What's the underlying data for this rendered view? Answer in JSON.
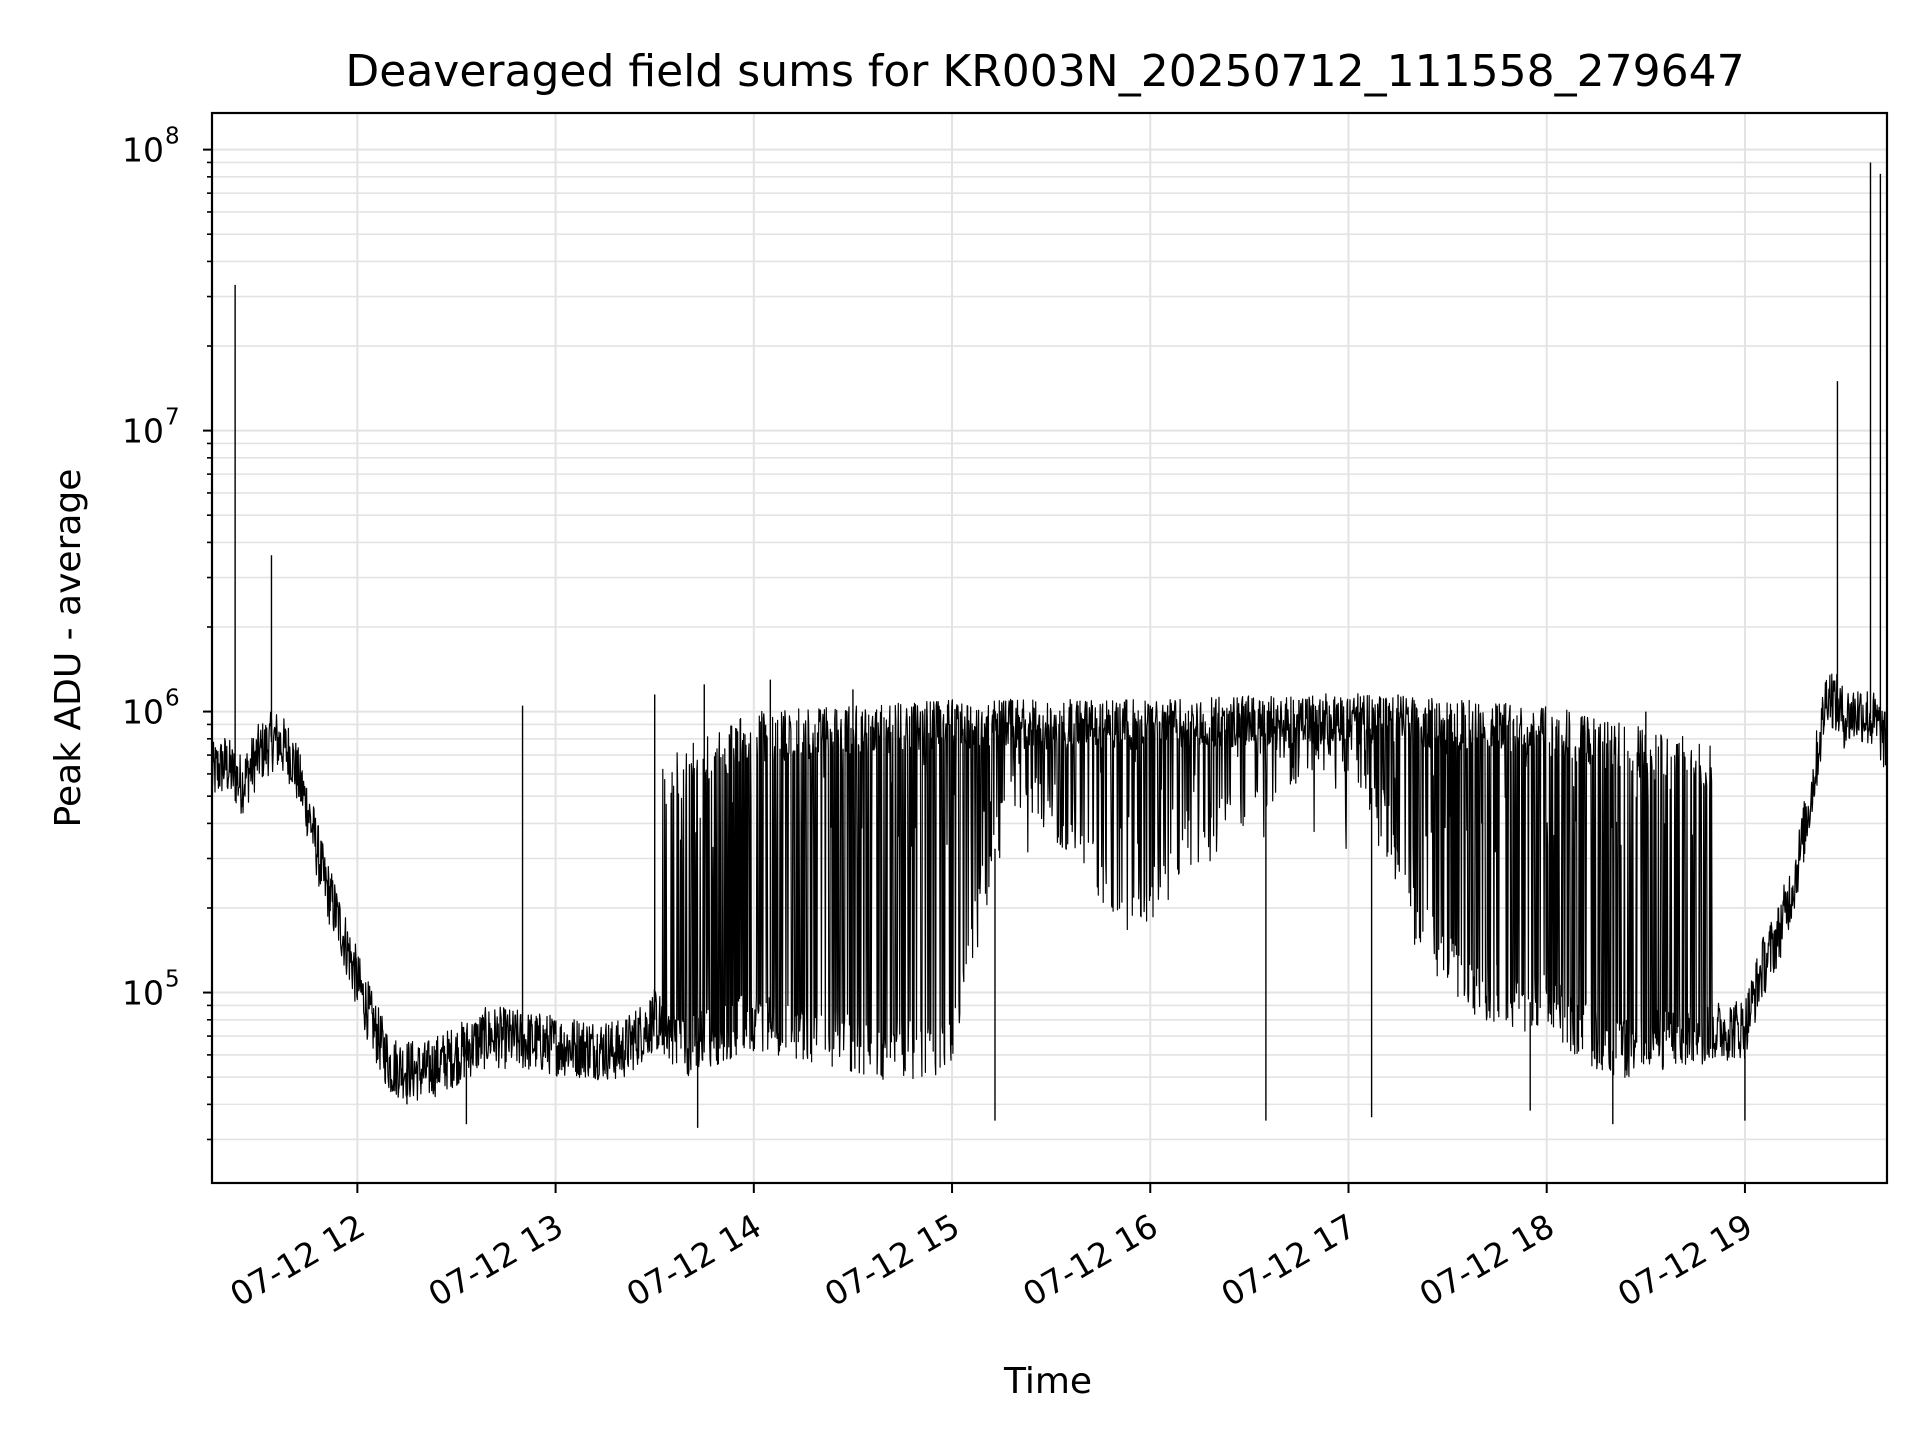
{
  "chart_data": {
    "type": "line",
    "title": "Deaveraged field sums for KR003N_20250712_111558_279647",
    "xlabel": "Time",
    "ylabel": "Peak ADU - average",
    "y_scale": "log",
    "grid": true,
    "xlim": [
      "2025-07-12T11:16",
      "2025-07-12T19:43"
    ],
    "ylim": [
      21000,
      135000000
    ],
    "x_ticks": [
      {
        "at": "2025-07-12T12:00",
        "label": "07-12 12"
      },
      {
        "at": "2025-07-12T13:00",
        "label": "07-12 13"
      },
      {
        "at": "2025-07-12T14:00",
        "label": "07-12 14"
      },
      {
        "at": "2025-07-12T15:00",
        "label": "07-12 15"
      },
      {
        "at": "2025-07-12T16:00",
        "label": "07-12 16"
      },
      {
        "at": "2025-07-12T17:00",
        "label": "07-12 17"
      },
      {
        "at": "2025-07-12T18:00",
        "label": "07-12 18"
      },
      {
        "at": "2025-07-12T19:00",
        "label": "07-12 19"
      }
    ],
    "y_ticks": [
      {
        "value": 100000,
        "base": "10",
        "exp": "5"
      },
      {
        "value": 1000000,
        "base": "10",
        "exp": "6"
      },
      {
        "value": 10000000,
        "base": "10",
        "exp": "7"
      },
      {
        "value": 100000000,
        "base": "10",
        "exp": "8"
      }
    ],
    "series": [
      {
        "color": "#000000",
        "baseline": [
          [
            "2025-07-12T11:16",
            600000
          ],
          [
            "2025-07-12T11:20",
            650000
          ],
          [
            "2025-07-12T11:25",
            550000
          ],
          [
            "2025-07-12T11:30",
            700000
          ],
          [
            "2025-07-12T11:35",
            800000
          ],
          [
            "2025-07-12T11:40",
            700000
          ],
          [
            "2025-07-12T11:45",
            450000
          ],
          [
            "2025-07-12T11:50",
            250000
          ],
          [
            "2025-07-12T11:55",
            170000
          ],
          [
            "2025-07-12T12:00",
            110000
          ],
          [
            "2025-07-12T12:05",
            75000
          ],
          [
            "2025-07-12T12:10",
            55000
          ],
          [
            "2025-07-12T12:20",
            52000
          ],
          [
            "2025-07-12T12:30",
            60000
          ],
          [
            "2025-07-12T12:40",
            70000
          ],
          [
            "2025-07-12T13:00",
            65000
          ],
          [
            "2025-07-12T13:20",
            62000
          ],
          [
            "2025-07-12T13:30",
            80000
          ],
          [
            "2025-07-12T13:40",
            65000
          ],
          [
            "2025-07-12T14:00",
            80000
          ],
          [
            "2025-07-12T14:20",
            72000
          ],
          [
            "2025-07-12T14:40",
            62000
          ],
          [
            "2025-07-12T15:00",
            65000
          ],
          [
            "2025-07-12T15:10",
            250000
          ],
          [
            "2025-07-12T15:20",
            600000
          ],
          [
            "2025-07-12T15:40",
            350000
          ],
          [
            "2025-07-12T15:50",
            200000
          ],
          [
            "2025-07-12T16:00",
            220000
          ],
          [
            "2025-07-12T16:20",
            400000
          ],
          [
            "2025-07-12T16:40",
            650000
          ],
          [
            "2025-07-12T17:00",
            800000
          ],
          [
            "2025-07-12T17:10",
            450000
          ],
          [
            "2025-07-12T17:20",
            180000
          ],
          [
            "2025-07-12T17:40",
            100000
          ],
          [
            "2025-07-12T18:00",
            90000
          ],
          [
            "2025-07-12T18:20",
            62000
          ],
          [
            "2025-07-12T18:40",
            70000
          ],
          [
            "2025-07-12T19:00",
            75000
          ],
          [
            "2025-07-12T19:05",
            120000
          ],
          [
            "2025-07-12T19:10",
            160000
          ],
          [
            "2025-07-12T19:15",
            250000
          ],
          [
            "2025-07-12T19:20",
            500000
          ],
          [
            "2025-07-12T19:25",
            1200000
          ],
          [
            "2025-07-12T19:30",
            950000
          ],
          [
            "2025-07-12T19:35",
            1000000
          ],
          [
            "2025-07-12T19:40",
            900000
          ],
          [
            "2025-07-12T19:43",
            750000
          ]
        ],
        "spikes": [
          [
            "2025-07-12T11:23",
            33000000
          ],
          [
            "2025-07-12T11:34",
            3600000
          ],
          [
            "2025-07-12T12:50",
            1050000
          ],
          [
            "2025-07-12T13:30",
            1150000
          ],
          [
            "2025-07-12T13:45",
            1250000
          ],
          [
            "2025-07-12T14:05",
            1300000
          ],
          [
            "2025-07-12T14:30",
            1200000
          ],
          [
            "2025-07-12T15:00",
            1050000
          ],
          [
            "2025-07-12T16:00",
            1050000
          ],
          [
            "2025-07-12T16:45",
            1100000
          ],
          [
            "2025-07-12T17:15",
            1150000
          ],
          [
            "2025-07-12T17:45",
            1050000
          ],
          [
            "2025-07-12T18:30",
            1000000
          ],
          [
            "2025-07-12T19:28",
            15000000
          ],
          [
            "2025-07-12T19:38",
            90000000
          ],
          [
            "2025-07-12T19:41",
            82000000
          ]
        ],
        "dips": [
          [
            "2025-07-12T12:15",
            40000
          ],
          [
            "2025-07-12T12:33",
            34000
          ],
          [
            "2025-07-12T13:43",
            33000
          ],
          [
            "2025-07-12T15:13",
            35000
          ],
          [
            "2025-07-12T16:35",
            35000
          ],
          [
            "2025-07-12T17:07",
            36000
          ],
          [
            "2025-07-12T17:55",
            38000
          ],
          [
            "2025-07-12T18:20",
            34000
          ],
          [
            "2025-07-12T19:00",
            35000
          ]
        ],
        "band": [
          [
            "2025-07-12T13:30",
            600000
          ],
          [
            "2025-07-12T14:00",
            900000
          ],
          [
            "2025-07-12T14:30",
            950000
          ],
          [
            "2025-07-12T15:00",
            1000000
          ],
          [
            "2025-07-12T16:00",
            1000000
          ],
          [
            "2025-07-12T17:00",
            1050000
          ],
          [
            "2025-07-12T18:00",
            950000
          ],
          [
            "2025-07-12T18:50",
            700000
          ]
        ]
      }
    ]
  }
}
